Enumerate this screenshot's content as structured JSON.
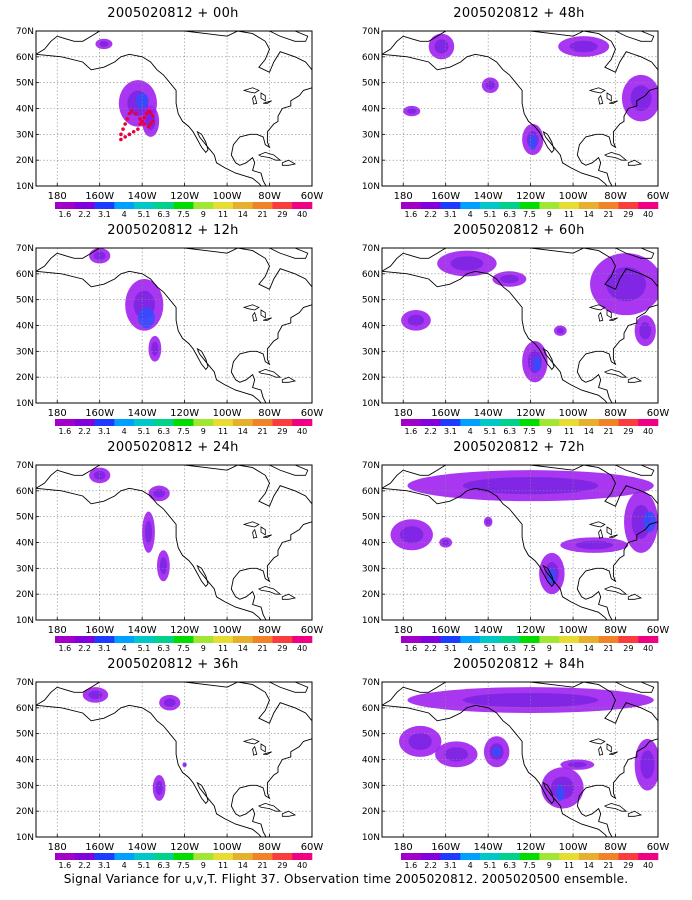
{
  "figure": {
    "caption": "Signal Variance for u,v,T. Flight 37. Observation time 2005020812. 2005020500 ensemble.",
    "lat_ticks": [
      "70N",
      "60N",
      "50N",
      "40N",
      "30N",
      "20N",
      "10N"
    ],
    "lon_ticks": [
      "180",
      "160W",
      "140W",
      "120W",
      "100W",
      "80W",
      "60W"
    ],
    "colorbar": {
      "labels": [
        "1.6",
        "2.2",
        "3.1",
        "4",
        "5.1",
        "6.3",
        "7.5",
        "9",
        "11",
        "14",
        "21",
        "29",
        "40"
      ],
      "colors": [
        "#a000c8",
        "#8200dc",
        "#1e3cff",
        "#00a0ff",
        "#00c8c8",
        "#00d28c",
        "#00dc00",
        "#a0e632",
        "#e6dc32",
        "#e6af2d",
        "#f08228",
        "#fa3c3c",
        "#f00082"
      ]
    },
    "fill_colors": {
      "light": "#a020f0",
      "mid": "#7020e0",
      "dark": "#3050ff"
    },
    "panels": [
      {
        "title": "2005020812 + 00h",
        "blobs": [
          {
            "lon": -158,
            "lat": 65,
            "rlon": 4,
            "rlat": 2,
            "level": 1
          },
          {
            "lon": -142,
            "lat": 42,
            "rlon": 9,
            "rlat": 9,
            "level": 1
          },
          {
            "lon": -136,
            "lat": 35,
            "rlon": 4,
            "rlat": 6,
            "level": 1
          },
          {
            "lon": -140,
            "lat": 43,
            "rlon": 3,
            "rlat": 3,
            "level": 2
          }
        ],
        "track": [
          [
            -150,
            28
          ],
          [
            -148,
            29
          ],
          [
            -146,
            30
          ],
          [
            -144,
            31
          ],
          [
            -142,
            32
          ],
          [
            -141,
            34
          ],
          [
            -140,
            35
          ],
          [
            -139,
            36.5
          ],
          [
            -138,
            38
          ],
          [
            -137,
            39
          ],
          [
            -136,
            38.5
          ],
          [
            -135,
            37
          ],
          [
            -135,
            35
          ],
          [
            -136,
            34
          ],
          [
            -137,
            33
          ],
          [
            -139,
            34
          ],
          [
            -141,
            36
          ],
          [
            -143,
            38
          ],
          [
            -145,
            39
          ],
          [
            -146,
            38
          ],
          [
            -147,
            36
          ],
          [
            -148,
            34
          ],
          [
            -149,
            32
          ],
          [
            -150,
            30
          ]
        ]
      },
      {
        "title": "2005020812 + 48h",
        "blobs": [
          {
            "lon": -162,
            "lat": 64,
            "rlon": 6,
            "rlat": 5,
            "level": 1
          },
          {
            "lon": -95,
            "lat": 64,
            "rlon": 12,
            "rlat": 4,
            "level": 1
          },
          {
            "lon": -68,
            "lat": 44,
            "rlon": 9,
            "rlat": 9,
            "level": 1
          },
          {
            "lon": -139,
            "lat": 49,
            "rlon": 4,
            "rlat": 3,
            "level": 1
          },
          {
            "lon": -176,
            "lat": 39,
            "rlon": 4,
            "rlat": 2,
            "level": 1
          },
          {
            "lon": -119,
            "lat": 28,
            "rlon": 5,
            "rlat": 6,
            "level": 1
          },
          {
            "lon": -119,
            "lat": 27,
            "rlon": 2,
            "rlat": 3,
            "level": 2
          }
        ]
      },
      {
        "title": "2005020812 + 12h",
        "blobs": [
          {
            "lon": -160,
            "lat": 67,
            "rlon": 5,
            "rlat": 3,
            "level": 1
          },
          {
            "lon": -139,
            "lat": 48,
            "rlon": 9,
            "rlat": 10,
            "level": 1
          },
          {
            "lon": -134,
            "lat": 31,
            "rlon": 3,
            "rlat": 5,
            "level": 1
          },
          {
            "lon": -138,
            "lat": 43,
            "rlon": 4,
            "rlat": 4,
            "level": 2
          }
        ]
      },
      {
        "title": "2005020812 + 60h",
        "blobs": [
          {
            "lon": -150,
            "lat": 64,
            "rlon": 14,
            "rlat": 5,
            "level": 1
          },
          {
            "lon": -130,
            "lat": 58,
            "rlon": 8,
            "rlat": 3,
            "level": 1
          },
          {
            "lon": -75,
            "lat": 56,
            "rlon": 17,
            "rlat": 12,
            "level": 1
          },
          {
            "lon": -66,
            "lat": 38,
            "rlon": 5,
            "rlat": 6,
            "level": 1
          },
          {
            "lon": -174,
            "lat": 42,
            "rlon": 7,
            "rlat": 4,
            "level": 1
          },
          {
            "lon": -118,
            "lat": 26,
            "rlon": 6,
            "rlat": 8,
            "level": 1
          },
          {
            "lon": -117,
            "lat": 25,
            "rlon": 2,
            "rlat": 3,
            "level": 2
          },
          {
            "lon": -106,
            "lat": 38,
            "rlon": 3,
            "rlat": 2,
            "level": 1
          }
        ]
      },
      {
        "title": "2005020812 + 24h",
        "blobs": [
          {
            "lon": -160,
            "lat": 66,
            "rlon": 5,
            "rlat": 3,
            "level": 1
          },
          {
            "lon": -132,
            "lat": 59,
            "rlon": 5,
            "rlat": 3,
            "level": 1
          },
          {
            "lon": -137,
            "lat": 44,
            "rlon": 3,
            "rlat": 8,
            "level": 1
          },
          {
            "lon": -130,
            "lat": 31,
            "rlon": 3,
            "rlat": 6,
            "level": 1
          }
        ]
      },
      {
        "title": "2005020812 + 72h",
        "blobs": [
          {
            "lon": -120,
            "lat": 62,
            "rlon": 58,
            "rlat": 6,
            "level": 1
          },
          {
            "lon": -68,
            "lat": 48,
            "rlon": 8,
            "rlat": 12,
            "level": 1
          },
          {
            "lon": -176,
            "lat": 43,
            "rlon": 10,
            "rlat": 6,
            "level": 1
          },
          {
            "lon": -160,
            "lat": 40,
            "rlon": 3,
            "rlat": 2,
            "level": 1
          },
          {
            "lon": -110,
            "lat": 28,
            "rlon": 6,
            "rlat": 8,
            "level": 1
          },
          {
            "lon": -110,
            "lat": 27,
            "rlon": 2,
            "rlat": 3,
            "level": 2
          },
          {
            "lon": -90,
            "lat": 39,
            "rlon": 16,
            "rlat": 3,
            "level": 1
          },
          {
            "lon": -140,
            "lat": 48,
            "rlon": 2,
            "rlat": 2,
            "level": 1
          },
          {
            "lon": -64,
            "lat": 48,
            "rlon": 3,
            "rlat": 4,
            "level": 2
          }
        ]
      },
      {
        "title": "2005020812 + 36h",
        "blobs": [
          {
            "lon": -162,
            "lat": 65,
            "rlon": 6,
            "rlat": 3,
            "level": 1
          },
          {
            "lon": -127,
            "lat": 62,
            "rlon": 5,
            "rlat": 3,
            "level": 1
          },
          {
            "lon": -132,
            "lat": 29,
            "rlon": 3,
            "rlat": 5,
            "level": 1
          },
          {
            "lon": -120,
            "lat": 38,
            "rlon": 1,
            "rlat": 1,
            "level": 1
          }
        ]
      },
      {
        "title": "2005020812 + 84h",
        "blobs": [
          {
            "lon": -120,
            "lat": 63,
            "rlon": 58,
            "rlat": 5,
            "level": 1
          },
          {
            "lon": -172,
            "lat": 47,
            "rlon": 10,
            "rlat": 6,
            "level": 1
          },
          {
            "lon": -155,
            "lat": 42,
            "rlon": 10,
            "rlat": 5,
            "level": 1
          },
          {
            "lon": -136,
            "lat": 43,
            "rlon": 6,
            "rlat": 6,
            "level": 1
          },
          {
            "lon": -136,
            "lat": 43,
            "rlon": 2,
            "rlat": 2,
            "level": 2
          },
          {
            "lon": -105,
            "lat": 29,
            "rlon": 10,
            "rlat": 8,
            "level": 1
          },
          {
            "lon": -106,
            "lat": 27,
            "rlon": 2,
            "rlat": 3,
            "level": 2
          },
          {
            "lon": -65,
            "lat": 38,
            "rlon": 6,
            "rlat": 10,
            "level": 1
          },
          {
            "lon": -98,
            "lat": 38,
            "rlon": 8,
            "rlat": 2,
            "level": 1
          }
        ]
      }
    ]
  }
}
